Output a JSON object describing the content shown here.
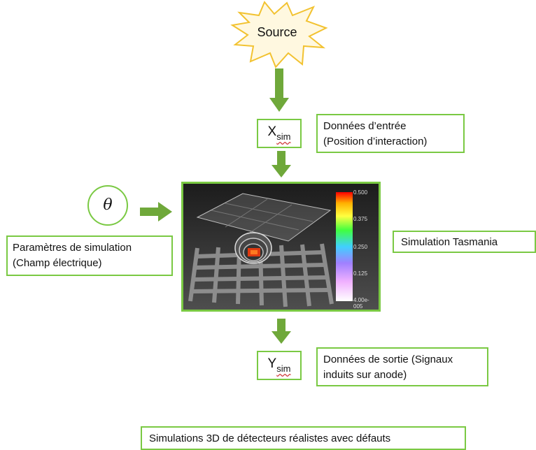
{
  "source": {
    "label": "Source"
  },
  "input_var": {
    "main": "X",
    "sub": "sim"
  },
  "input_desc": "Données d’entrée\n(Position d’interaction)",
  "theta": "θ",
  "params_desc": "Paramètres de simulation\n(Champ électrique)",
  "simulation_label": "Simulation Tasmania",
  "colorbar_ticks": [
    "0.500",
    "0.375",
    "0.250",
    "0.125",
    "4.00e-005"
  ],
  "output_var": {
    "main": "Y",
    "sub": "sim"
  },
  "output_desc": "Données de sortie (Signaux\ninduits sur anode)",
  "footer": "Simulations 3D de détecteurs réalistes avec défauts",
  "colors": {
    "accent": "#7ac943",
    "arrow": "#6fa83a",
    "star_fill": "#fff8e0",
    "star_stroke": "#f2c230"
  }
}
